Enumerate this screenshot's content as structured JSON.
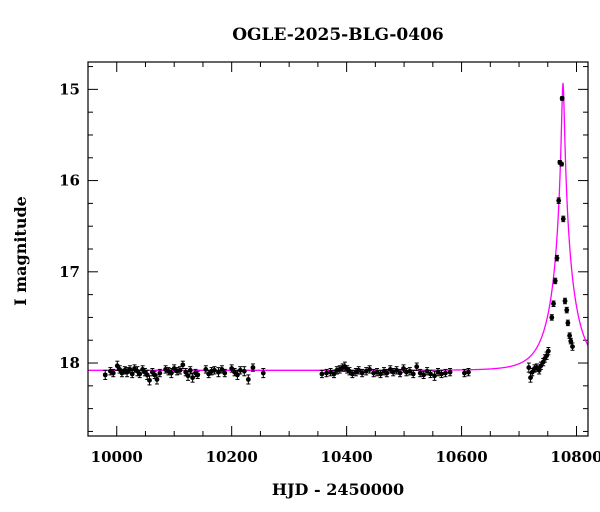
{
  "chart_data": {
    "type": "scatter",
    "title": "OGLE-2025-BLG-0406",
    "xlabel": "HJD - 2450000",
    "ylabel": "I magnitude",
    "xlim": [
      9950,
      10820
    ],
    "ylim": [
      18.8,
      14.7
    ],
    "y_inverted": true,
    "x_ticks": [
      10000,
      10200,
      10400,
      10600,
      10800
    ],
    "x_tick_labels": [
      "10000",
      "10200",
      "10400",
      "10600",
      "10800"
    ],
    "y_ticks": [
      15,
      16,
      17,
      18
    ],
    "y_tick_labels": [
      "15",
      "16",
      "17",
      "18"
    ],
    "grid": false,
    "colors": {
      "data": "#000000",
      "model": "#ff00ff"
    },
    "model": {
      "baseline": 18.08,
      "t0": 10776.5,
      "u0": 0.055,
      "tE": 40
    },
    "series": [
      {
        "values": [
          {
            "x": 9980,
            "y": 18.13,
            "e": 0.05
          },
          {
            "x": 9989,
            "y": 18.09,
            "e": 0.04
          },
          {
            "x": 9994,
            "y": 18.11,
            "e": 0.04
          },
          {
            "x": 10001,
            "y": 18.03,
            "e": 0.05
          },
          {
            "x": 10005,
            "y": 18.07,
            "e": 0.04
          },
          {
            "x": 10009,
            "y": 18.11,
            "e": 0.04
          },
          {
            "x": 10014,
            "y": 18.08,
            "e": 0.04
          },
          {
            "x": 10018,
            "y": 18.1,
            "e": 0.05
          },
          {
            "x": 10023,
            "y": 18.07,
            "e": 0.04
          },
          {
            "x": 10027,
            "y": 18.12,
            "e": 0.04
          },
          {
            "x": 10031,
            "y": 18.06,
            "e": 0.04
          },
          {
            "x": 10036,
            "y": 18.09,
            "e": 0.05
          },
          {
            "x": 10040,
            "y": 18.12,
            "e": 0.04
          },
          {
            "x": 10045,
            "y": 18.07,
            "e": 0.04
          },
          {
            "x": 10049,
            "y": 18.1,
            "e": 0.04
          },
          {
            "x": 10053,
            "y": 18.13,
            "e": 0.05
          },
          {
            "x": 10057,
            "y": 18.19,
            "e": 0.05
          },
          {
            "x": 10062,
            "y": 18.1,
            "e": 0.04
          },
          {
            "x": 10066,
            "y": 18.13,
            "e": 0.04
          },
          {
            "x": 10070,
            "y": 18.18,
            "e": 0.05
          },
          {
            "x": 10075,
            "y": 18.11,
            "e": 0.04
          },
          {
            "x": 10085,
            "y": 18.07,
            "e": 0.04
          },
          {
            "x": 10090,
            "y": 18.09,
            "e": 0.04
          },
          {
            "x": 10095,
            "y": 18.11,
            "e": 0.05
          },
          {
            "x": 10100,
            "y": 18.06,
            "e": 0.04
          },
          {
            "x": 10105,
            "y": 18.09,
            "e": 0.04
          },
          {
            "x": 10110,
            "y": 18.08,
            "e": 0.04
          },
          {
            "x": 10115,
            "y": 18.02,
            "e": 0.04
          },
          {
            "x": 10120,
            "y": 18.1,
            "e": 0.04
          },
          {
            "x": 10124,
            "y": 18.14,
            "e": 0.05
          },
          {
            "x": 10128,
            "y": 18.08,
            "e": 0.04
          },
          {
            "x": 10132,
            "y": 18.16,
            "e": 0.05
          },
          {
            "x": 10137,
            "y": 18.11,
            "e": 0.04
          },
          {
            "x": 10141,
            "y": 18.13,
            "e": 0.04
          },
          {
            "x": 10155,
            "y": 18.07,
            "e": 0.04
          },
          {
            "x": 10160,
            "y": 18.12,
            "e": 0.04
          },
          {
            "x": 10165,
            "y": 18.09,
            "e": 0.04
          },
          {
            "x": 10170,
            "y": 18.08,
            "e": 0.04
          },
          {
            "x": 10177,
            "y": 18.1,
            "e": 0.05
          },
          {
            "x": 10183,
            "y": 18.07,
            "e": 0.04
          },
          {
            "x": 10188,
            "y": 18.11,
            "e": 0.04
          },
          {
            "x": 10200,
            "y": 18.06,
            "e": 0.04
          },
          {
            "x": 10205,
            "y": 18.1,
            "e": 0.04
          },
          {
            "x": 10210,
            "y": 18.13,
            "e": 0.05
          },
          {
            "x": 10215,
            "y": 18.08,
            "e": 0.04
          },
          {
            "x": 10222,
            "y": 18.09,
            "e": 0.05
          },
          {
            "x": 10229,
            "y": 18.18,
            "e": 0.05
          },
          {
            "x": 10237,
            "y": 18.05,
            "e": 0.04
          },
          {
            "x": 10255,
            "y": 18.11,
            "e": 0.05
          },
          {
            "x": 10357,
            "y": 18.12,
            "e": 0.04
          },
          {
            "x": 10365,
            "y": 18.11,
            "e": 0.04
          },
          {
            "x": 10372,
            "y": 18.1,
            "e": 0.04
          },
          {
            "x": 10378,
            "y": 18.12,
            "e": 0.04
          },
          {
            "x": 10383,
            "y": 18.08,
            "e": 0.04
          },
          {
            "x": 10388,
            "y": 18.07,
            "e": 0.04
          },
          {
            "x": 10393,
            "y": 18.05,
            "e": 0.04
          },
          {
            "x": 10397,
            "y": 18.04,
            "e": 0.05
          },
          {
            "x": 10401,
            "y": 18.07,
            "e": 0.04
          },
          {
            "x": 10405,
            "y": 18.09,
            "e": 0.04
          },
          {
            "x": 10410,
            "y": 18.12,
            "e": 0.04
          },
          {
            "x": 10416,
            "y": 18.1,
            "e": 0.04
          },
          {
            "x": 10421,
            "y": 18.08,
            "e": 0.04
          },
          {
            "x": 10427,
            "y": 18.11,
            "e": 0.04
          },
          {
            "x": 10434,
            "y": 18.09,
            "e": 0.04
          },
          {
            "x": 10440,
            "y": 18.07,
            "e": 0.04
          },
          {
            "x": 10447,
            "y": 18.11,
            "e": 0.04
          },
          {
            "x": 10453,
            "y": 18.1,
            "e": 0.04
          },
          {
            "x": 10459,
            "y": 18.12,
            "e": 0.04
          },
          {
            "x": 10465,
            "y": 18.09,
            "e": 0.04
          },
          {
            "x": 10470,
            "y": 18.11,
            "e": 0.04
          },
          {
            "x": 10476,
            "y": 18.07,
            "e": 0.04
          },
          {
            "x": 10481,
            "y": 18.1,
            "e": 0.04
          },
          {
            "x": 10487,
            "y": 18.08,
            "e": 0.04
          },
          {
            "x": 10493,
            "y": 18.11,
            "e": 0.04
          },
          {
            "x": 10499,
            "y": 18.06,
            "e": 0.04
          },
          {
            "x": 10504,
            "y": 18.1,
            "e": 0.04
          },
          {
            "x": 10510,
            "y": 18.09,
            "e": 0.04
          },
          {
            "x": 10516,
            "y": 18.12,
            "e": 0.04
          },
          {
            "x": 10522,
            "y": 18.04,
            "e": 0.04
          },
          {
            "x": 10528,
            "y": 18.11,
            "e": 0.04
          },
          {
            "x": 10534,
            "y": 18.13,
            "e": 0.04
          },
          {
            "x": 10540,
            "y": 18.09,
            "e": 0.04
          },
          {
            "x": 10546,
            "y": 18.12,
            "e": 0.04
          },
          {
            "x": 10553,
            "y": 18.14,
            "e": 0.05
          },
          {
            "x": 10559,
            "y": 18.1,
            "e": 0.04
          },
          {
            "x": 10565,
            "y": 18.12,
            "e": 0.04
          },
          {
            "x": 10572,
            "y": 18.11,
            "e": 0.04
          },
          {
            "x": 10580,
            "y": 18.1,
            "e": 0.04
          },
          {
            "x": 10605,
            "y": 18.11,
            "e": 0.04
          },
          {
            "x": 10612,
            "y": 18.1,
            "e": 0.04
          },
          {
            "x": 10717,
            "y": 18.05,
            "e": 0.05
          },
          {
            "x": 10720,
            "y": 18.16,
            "e": 0.05
          },
          {
            "x": 10723,
            "y": 18.1,
            "e": 0.04
          },
          {
            "x": 10727,
            "y": 18.06,
            "e": 0.04
          },
          {
            "x": 10731,
            "y": 18.05,
            "e": 0.04
          },
          {
            "x": 10735,
            "y": 18.08,
            "e": 0.04
          },
          {
            "x": 10738,
            "y": 18.03,
            "e": 0.04
          },
          {
            "x": 10742,
            "y": 17.99,
            "e": 0.04
          },
          {
            "x": 10745,
            "y": 17.95,
            "e": 0.04
          },
          {
            "x": 10748,
            "y": 17.92,
            "e": 0.04
          },
          {
            "x": 10751,
            "y": 17.87,
            "e": 0.04
          },
          {
            "x": 10757,
            "y": 17.5,
            "e": 0.03
          },
          {
            "x": 10760,
            "y": 17.35,
            "e": 0.03
          },
          {
            "x": 10763,
            "y": 17.1,
            "e": 0.03
          },
          {
            "x": 10766,
            "y": 16.85,
            "e": 0.03
          },
          {
            "x": 10769,
            "y": 16.22,
            "e": 0.03
          },
          {
            "x": 10771,
            "y": 15.8,
            "e": 0.02
          },
          {
            "x": 10774,
            "y": 15.82,
            "e": 0.02
          },
          {
            "x": 10775,
            "y": 15.1,
            "e": 0.02
          },
          {
            "x": 10777,
            "y": 16.42,
            "e": 0.03
          },
          {
            "x": 10780,
            "y": 17.32,
            "e": 0.03
          },
          {
            "x": 10783,
            "y": 17.42,
            "e": 0.03
          },
          {
            "x": 10785,
            "y": 17.56,
            "e": 0.03
          },
          {
            "x": 10788,
            "y": 17.7,
            "e": 0.03
          },
          {
            "x": 10790,
            "y": 17.76,
            "e": 0.03
          },
          {
            "x": 10793,
            "y": 17.82,
            "e": 0.04
          }
        ]
      }
    ]
  }
}
